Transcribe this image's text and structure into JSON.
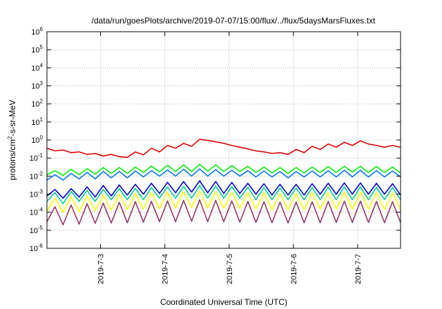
{
  "chart_data": {
    "type": "line",
    "title": "/data/run/goesPlots/archive/2019-07-07/15:00/flux/../flux/5daysMarsFluxes.txt",
    "xlabel": "Coordinated Universal Time (UTC)",
    "ylabel": {
      "base": "protons/cm",
      "sup": "2",
      "rest": "-s-sr-MeV"
    },
    "x_axis": {
      "unit": "days",
      "range": [
        "2019-07-02 04:00",
        "2019-07-07 16:00"
      ],
      "ticks": [
        "2019-7-3",
        "2019-7-4",
        "2019-7-5",
        "2019-7-6",
        "2019-7-7"
      ],
      "tick_label_rotation": -90
    },
    "y_axis": {
      "scale": "log",
      "ylim": [
        1e-06,
        1000000.0
      ],
      "tick_base": "10",
      "tick_exponents": [
        "-6",
        "-5",
        "-4",
        "-3",
        "-2",
        "-1",
        "0",
        "1",
        "2",
        "3",
        "4",
        "5",
        "6"
      ]
    },
    "grid": true,
    "legend": "none",
    "sample_interval_hours": 3,
    "series": [
      {
        "color": "#dd0000",
        "values": [
          0.35,
          0.25,
          0.28,
          0.2,
          0.22,
          0.16,
          0.18,
          0.13,
          0.16,
          0.12,
          0.11,
          0.22,
          0.15,
          0.35,
          0.22,
          0.5,
          0.35,
          0.65,
          0.45,
          1.1,
          0.95,
          0.8,
          0.65,
          0.5,
          0.4,
          0.32,
          0.25,
          0.22,
          0.18,
          0.2,
          0.16,
          0.3,
          0.2,
          0.45,
          0.3,
          0.6,
          0.4,
          0.75,
          0.5,
          0.9,
          0.6,
          0.5,
          0.4,
          0.5,
          0.4,
          1.5,
          1.2,
          1.0,
          0.8,
          0.6,
          0.45,
          0.35,
          0.28,
          0.22,
          0.18,
          0.16,
          0.2,
          0.18,
          0.3,
          0.2,
          0.45,
          0.3,
          0.65,
          0.45,
          0.8,
          0.55,
          0.95,
          0.7,
          0.45,
          0.35,
          0.25,
          0.2,
          0.17,
          0.15,
          0.12,
          0.25,
          0.18,
          0.45,
          0.3,
          0.65,
          0.45,
          0.8,
          0.6,
          1.3,
          1.0,
          0.85,
          0.6,
          0.45,
          0.32,
          0.25,
          0.18,
          0.14,
          0.12,
          0.1,
          0.08,
          0.22
        ]
      },
      {
        "color": "#00ee00",
        "values": [
          0.012,
          0.02,
          0.011,
          0.024,
          0.012,
          0.026,
          0.013,
          0.03,
          0.014,
          0.03,
          0.014,
          0.032,
          0.016,
          0.036,
          0.017,
          0.04,
          0.018,
          0.042,
          0.018,
          0.045,
          0.019,
          0.042,
          0.018,
          0.038,
          0.018,
          0.035,
          0.016,
          0.032,
          0.015,
          0.03,
          0.014,
          0.03,
          0.015,
          0.032,
          0.016,
          0.034,
          0.016,
          0.035,
          0.017,
          0.035,
          0.016,
          0.034,
          0.016,
          0.032,
          0.015,
          0.032,
          0.015,
          0.035,
          0.016,
          0.036,
          0.016,
          0.034,
          0.015,
          0.032,
          0.015,
          0.03,
          0.014,
          0.03,
          0.014,
          0.032,
          0.015,
          0.033,
          0.015,
          0.034,
          0.016,
          0.034,
          0.015,
          0.032,
          0.015,
          0.03,
          0.014,
          0.028,
          0.013,
          0.028,
          0.013,
          0.03,
          0.014,
          0.032,
          0.014,
          0.034,
          0.015,
          0.035,
          0.015,
          0.034,
          0.014,
          0.032,
          0.013,
          0.03,
          0.013,
          0.028,
          0.012,
          0.026,
          0.012,
          0.025,
          0.011,
          0.024
        ]
      },
      {
        "color": "#0077ee",
        "values": [
          0.006,
          0.012,
          0.006,
          0.014,
          0.007,
          0.016,
          0.007,
          0.018,
          0.008,
          0.018,
          0.008,
          0.019,
          0.009,
          0.02,
          0.01,
          0.022,
          0.01,
          0.024,
          0.01,
          0.025,
          0.01,
          0.023,
          0.01,
          0.021,
          0.01,
          0.02,
          0.009,
          0.019,
          0.009,
          0.018,
          0.008,
          0.018,
          0.009,
          0.019,
          0.009,
          0.02,
          0.009,
          0.021,
          0.009,
          0.021,
          0.009,
          0.02,
          0.009,
          0.019,
          0.009,
          0.019,
          0.009,
          0.021,
          0.009,
          0.022,
          0.009,
          0.021,
          0.009,
          0.019,
          0.008,
          0.018,
          0.008,
          0.018,
          0.008,
          0.019,
          0.009,
          0.02,
          0.009,
          0.021,
          0.009,
          0.021,
          0.009,
          0.019,
          0.008,
          0.018,
          0.008,
          0.017,
          0.008,
          0.017,
          0.008,
          0.018,
          0.008,
          0.019,
          0.008,
          0.02,
          0.008,
          0.021,
          0.008,
          0.02,
          0.008,
          0.019,
          0.008,
          0.018,
          0.007,
          0.017,
          0.007,
          0.016,
          0.007,
          0.015,
          0.006,
          0.014
        ]
      },
      {
        "color": "#0000cc",
        "values": [
          0.0008,
          0.0018,
          0.0006,
          0.002,
          0.0007,
          0.0025,
          0.0007,
          0.003,
          0.0008,
          0.0032,
          0.0009,
          0.0035,
          0.001,
          0.004,
          0.0011,
          0.0045,
          0.0012,
          0.005,
          0.0013,
          0.0055,
          0.0012,
          0.005,
          0.0011,
          0.0045,
          0.0011,
          0.004,
          0.001,
          0.0038,
          0.0009,
          0.0035,
          0.0009,
          0.0035,
          0.0009,
          0.0038,
          0.001,
          0.004,
          0.001,
          0.0042,
          0.001,
          0.0042,
          0.001,
          0.004,
          0.001,
          0.0038,
          0.0009,
          0.0038,
          0.0009,
          0.0042,
          0.001,
          0.0045,
          0.001,
          0.0042,
          0.0009,
          0.004,
          0.0009,
          0.0038,
          0.0009,
          0.0038,
          0.0009,
          0.004,
          0.0009,
          0.0042,
          0.001,
          0.0044,
          0.001,
          0.0044,
          0.001,
          0.004,
          0.0009,
          0.0038,
          0.0009,
          0.0035,
          0.0008,
          0.0035,
          0.0008,
          0.0038,
          0.0009,
          0.004,
          0.0009,
          0.0042,
          0.0009,
          0.0044,
          0.0009,
          0.0042,
          0.0009,
          0.004,
          0.0008,
          0.0037,
          0.0008,
          0.0034,
          0.0007,
          0.0032,
          0.0007,
          0.003,
          0.0006,
          0.0028
        ]
      },
      {
        "color": "#00cc99",
        "values": [
          0.0004,
          0.0012,
          0.0003,
          0.0014,
          0.0004,
          0.0016,
          0.0004,
          0.0018,
          0.0005,
          0.002,
          0.0005,
          0.0021,
          0.0005,
          0.0023,
          0.0006,
          0.0025,
          0.0006,
          0.0027,
          0.0006,
          0.003,
          0.0006,
          0.0028,
          0.0006,
          0.0026,
          0.0006,
          0.0024,
          0.0005,
          0.0023,
          0.0005,
          0.0022,
          0.0005,
          0.0022,
          0.0005,
          0.0023,
          0.0005,
          0.0024,
          0.0005,
          0.0025,
          0.0005,
          0.0025,
          0.0005,
          0.0024,
          0.0005,
          0.0023,
          0.0005,
          0.0023,
          0.0005,
          0.0025,
          0.0005,
          0.0026,
          0.0005,
          0.0025,
          0.0005,
          0.0024,
          0.0005,
          0.0023,
          0.0005,
          0.0023,
          0.0005,
          0.0024,
          0.0005,
          0.0025,
          0.0005,
          0.0026,
          0.0005,
          0.0026,
          0.0005,
          0.0024,
          0.0005,
          0.0023,
          0.0004,
          0.0022,
          0.0004,
          0.0022,
          0.0004,
          0.0023,
          0.0005,
          0.0024,
          0.0005,
          0.0025,
          0.0005,
          0.0026,
          0.0005,
          0.0025,
          0.0005,
          0.0024,
          0.0004,
          0.0022,
          0.0004,
          0.0021,
          0.0004,
          0.002,
          0.0004,
          0.0019,
          0.0003,
          0.0018
        ]
      },
      {
        "color": "#ffff00",
        "values": [
          0.00012,
          0.0006,
          0.0001,
          0.0007,
          0.00011,
          0.0008,
          0.00012,
          0.0009,
          0.00013,
          0.001,
          0.00014,
          0.0011,
          0.00015,
          0.0012,
          0.00016,
          0.0013,
          0.00017,
          0.0014,
          0.00018,
          0.0015,
          0.00017,
          0.0014,
          0.00016,
          0.0013,
          0.00016,
          0.0012,
          0.00015,
          0.0012,
          0.00014,
          0.0011,
          0.00014,
          0.0011,
          0.00014,
          0.0012,
          0.00015,
          0.0012,
          0.00015,
          0.0013,
          0.00015,
          0.0013,
          0.00015,
          0.0012,
          0.00014,
          0.0012,
          0.00014,
          0.0012,
          0.00014,
          0.0013,
          0.00015,
          0.0013,
          0.00015,
          0.0013,
          0.00014,
          0.0012,
          0.00014,
          0.0012,
          0.00013,
          0.0012,
          0.00013,
          0.0012,
          0.00014,
          0.0013,
          0.00014,
          0.0013,
          0.00014,
          0.0013,
          0.00014,
          0.0012,
          0.00013,
          0.0012,
          0.00013,
          0.0011,
          0.00012,
          0.0011,
          0.00012,
          0.0012,
          0.00013,
          0.0012,
          0.00013,
          0.0013,
          0.00013,
          0.0013,
          0.00013,
          0.0013,
          0.00013,
          0.0012,
          0.00012,
          0.0011,
          0.00012,
          0.0011,
          0.00011,
          0.001,
          0.00011,
          0.001,
          0.0001,
          0.0009
        ]
      },
      {
        "color": "#993366",
        "values": [
          3e-05,
          0.0002,
          2e-05,
          0.00025,
          2.2e-05,
          0.0003,
          2.4e-05,
          0.00032,
          2.5e-05,
          0.00035,
          2.6e-05,
          0.00038,
          2.8e-05,
          0.0004,
          3e-05,
          0.00042,
          3e-05,
          0.00045,
          3.2e-05,
          0.00048,
          3e-05,
          0.00045,
          3e-05,
          0.00042,
          2.8e-05,
          0.0004,
          2.7e-05,
          0.00038,
          2.6e-05,
          0.00036,
          2.5e-05,
          0.00036,
          2.6e-05,
          0.00038,
          2.6e-05,
          0.0004,
          2.7e-05,
          0.00041,
          2.7e-05,
          0.00041,
          2.7e-05,
          0.0004,
          2.6e-05,
          0.00038,
          2.6e-05,
          0.00038,
          2.6e-05,
          0.0004,
          2.7e-05,
          0.00042,
          2.7e-05,
          0.00041,
          2.6e-05,
          0.0004,
          2.6e-05,
          0.00038,
          2.5e-05,
          0.00038,
          2.5e-05,
          0.00039,
          2.6e-05,
          0.0004,
          2.6e-05,
          0.00041,
          2.6e-05,
          0.00041,
          2.6e-05,
          0.00039,
          2.5e-05,
          0.00037,
          2.4e-05,
          0.00036,
          2.4e-05,
          0.00036,
          2.4e-05,
          0.00037,
          2.4e-05,
          0.00038,
          2.5e-05,
          0.00039,
          2.5e-05,
          0.0004,
          2.5e-05,
          0.00039,
          2.4e-05,
          0.00037,
          2.3e-05,
          0.00035,
          2.2e-05,
          0.00033,
          2.1e-05,
          0.00031,
          2e-05,
          0.0003,
          1.9e-05,
          0.00028
        ]
      }
    ]
  }
}
